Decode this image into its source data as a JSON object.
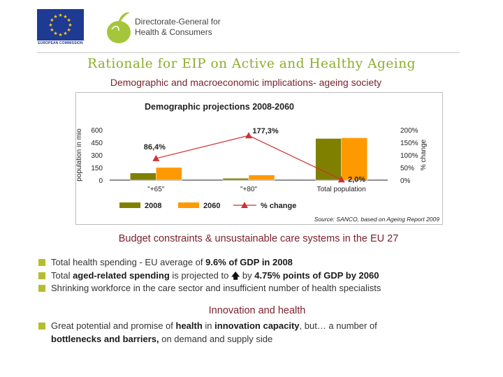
{
  "header": {
    "eu_caption": "EUROPEAN COMMISSION",
    "dg_line1": "Directorate-General for",
    "dg_line2": "Health & Consumers",
    "brand_green": "#8cad2c",
    "flag_blue": "#1f3a93",
    "star_yellow": "#ffd200"
  },
  "title": "Rationale for EIP on Active and Healthy Ageing",
  "subtitle": "Demographic and macroeconomic implications- ageing society",
  "chart_data": {
    "type": "bar",
    "title": "Demographic projections  2008-2060",
    "categories": [
      "\"+65\"",
      "\"+80\"",
      "Total population"
    ],
    "series": [
      {
        "name": "2008",
        "values": [
          85,
          22,
          497
        ],
        "color": "#808000"
      },
      {
        "name": "2060",
        "values": [
          151,
          61,
          505
        ],
        "color": "#ff9900"
      }
    ],
    "line_series": {
      "name": "% change",
      "values": [
        86.4,
        177.3,
        2.0
      ],
      "labels": [
        "86,4%",
        "177,3%",
        "2,0%"
      ],
      "color": "#cc3333"
    },
    "ylabel": "population in mio",
    "y2label": "% change",
    "ylim": [
      0,
      600
    ],
    "yticks": [
      0,
      150,
      300,
      450,
      600
    ],
    "y2lim": [
      0,
      200
    ],
    "y2ticks": [
      "0%",
      "50%",
      "100%",
      "150%",
      "200%"
    ],
    "legend": [
      "2008",
      "2060",
      "% change"
    ],
    "source": "Source: SANCO, based on Ageing Report 2009"
  },
  "section1": {
    "heading": "Budget constraints & unsustainable care systems in the EU 27",
    "bullet1_a": "Total health spending - EU average of ",
    "bullet1_b": "9.6% of GDP in 2008",
    "bullet2_a": "Total ",
    "bullet2_b": "aged-related spending",
    "bullet2_c": " is projected to ",
    "bullet2_arrow": "🡅",
    "bullet2_d": " by ",
    "bullet2_e": "4.75% points of GDP by 2060",
    "bullet3": "Shrinking workforce in the care sector and insufficient number of health specialists"
  },
  "section2": {
    "heading": "Innovation and health",
    "line1_a": "Great potential and promise of ",
    "line1_b": "health",
    "line1_c": " in ",
    "line1_d": "innovation capacity",
    "line1_e": ", but… a number of",
    "line2_a": "bottlenecks and barriers,",
    "line2_b": "  on demand and supply side"
  }
}
